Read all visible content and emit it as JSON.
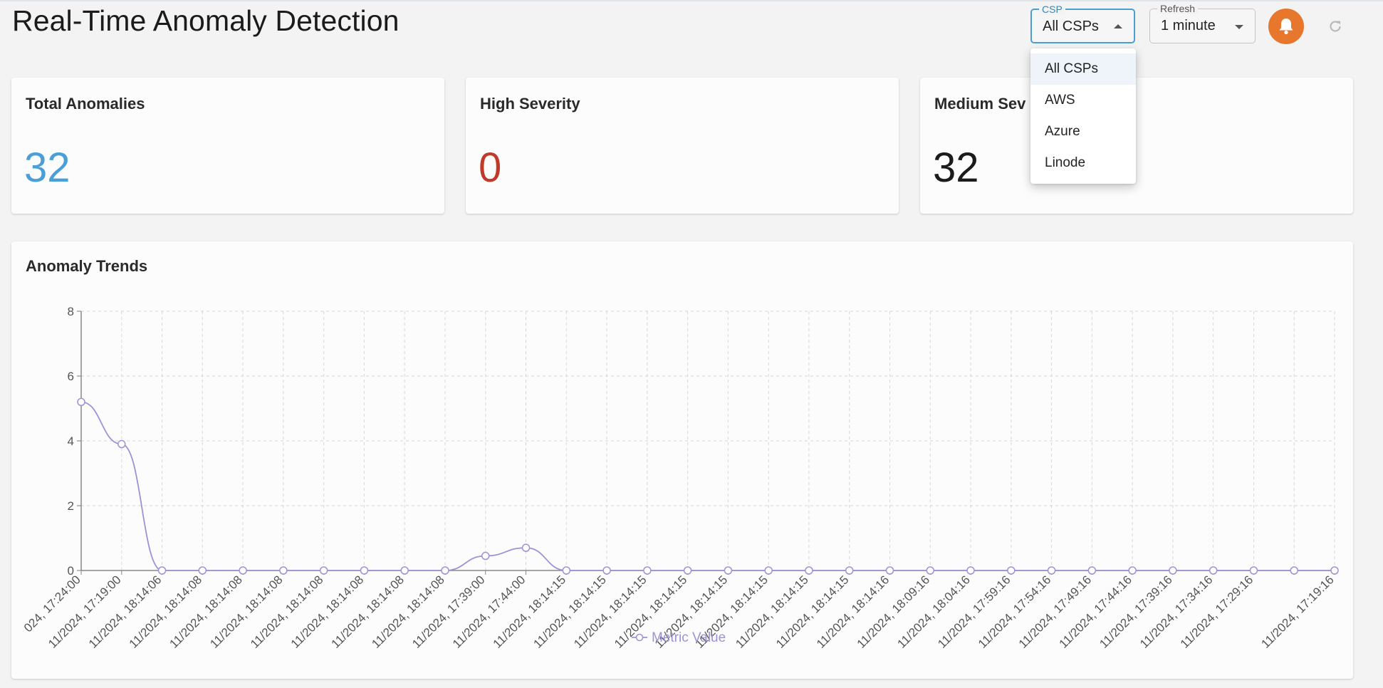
{
  "header": {
    "title": "Real-Time Anomaly Detection",
    "csp_select": {
      "label": "CSP",
      "value": "All CSPs"
    },
    "refresh_select": {
      "label": "Refresh",
      "value": "1 minute"
    },
    "bell_icon": "bell-icon",
    "refresh_icon": "refresh-icon",
    "accent_color": "#e8772e"
  },
  "dropdown": {
    "options": [
      "All CSPs",
      "AWS",
      "Azure",
      "Linode"
    ],
    "selected": "All CSPs"
  },
  "cards": [
    {
      "label": "Total Anomalies",
      "value": "32",
      "color": "#4a9fd6"
    },
    {
      "label": "High Severity",
      "value": "0",
      "color": "#c0392b"
    },
    {
      "label": "Medium Sev",
      "value": "32",
      "color": "#1b1b1b"
    }
  ],
  "chart": {
    "title": "Anomaly Trends"
  },
  "chart_data": {
    "type": "line",
    "title": "Anomaly Trends",
    "xlabel": "",
    "ylabel": "",
    "ylim": [
      0,
      8
    ],
    "yticks": [
      "0",
      "2",
      "4",
      "6",
      "8"
    ],
    "grid": true,
    "legend": "bottom",
    "line_color": "#9b93d6",
    "series": [
      {
        "name": "Metric Value",
        "values": [
          5.2,
          3.9,
          0,
          0,
          0,
          0,
          0,
          0,
          0,
          0,
          0.45,
          0.7,
          0,
          0,
          0,
          0,
          0,
          0,
          0,
          0,
          0,
          0,
          0,
          0,
          0,
          0,
          0,
          0,
          0,
          0,
          0,
          0
        ]
      }
    ],
    "x": [
      "024, 17:24:00",
      "11/2024, 17:19:00",
      "11/2024, 18:14:06",
      "11/2024, 18:14:08",
      "11/2024, 18:14:08",
      "11/2024, 18:14:08",
      "11/2024, 18:14:08",
      "11/2024, 18:14:08",
      "11/2024, 18:14:08",
      "11/2024, 18:14:08",
      "11/2024, 17:39:00",
      "11/2024, 17:44:00",
      "11/2024, 18:14:15",
      "11/2024, 18:14:15",
      "11/2024, 18:14:15",
      "11/2024, 18:14:15",
      "11/2024, 18:14:15",
      "11/2024, 18:14:15",
      "11/2024, 18:14:15",
      "11/2024, 18:14:15",
      "11/2024, 18:14:16",
      "11/2024, 18:09:16",
      "11/2024, 18:04:16",
      "11/2024, 17:59:16",
      "11/2024, 17:54:16",
      "11/2024, 17:49:16",
      "11/2024, 17:44:16",
      "11/2024, 17:39:16",
      "11/2024, 17:34:16",
      "11/2024, 17:29:16",
      "",
      "11/2024, 17:19:16"
    ]
  }
}
